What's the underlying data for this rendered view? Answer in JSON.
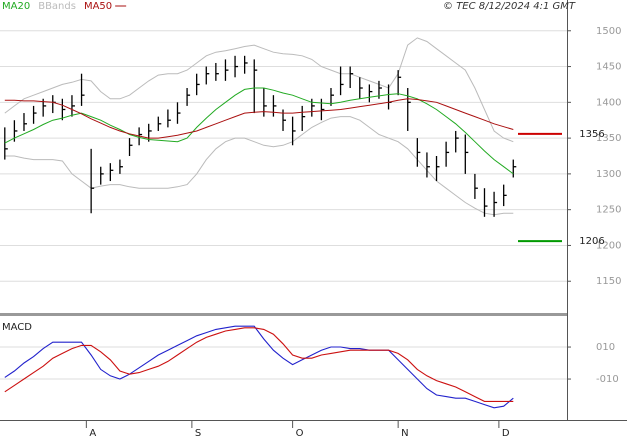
{
  "chart_data": [
    {
      "type": "ohlc",
      "credit": "© TEC 8/12/2024 4:1 GMT",
      "x": [
        0,
        1,
        2,
        3,
        4,
        5,
        6,
        7,
        8,
        9,
        10,
        11,
        12,
        13,
        14,
        15,
        16,
        17,
        18,
        19,
        20,
        21,
        22,
        23,
        24,
        25,
        26,
        27,
        28,
        29,
        30,
        31,
        32,
        33,
        34,
        35,
        36,
        37,
        38,
        39,
        40,
        41,
        42,
        43,
        44,
        45,
        46,
        47,
        48,
        49,
        50,
        51,
        52,
        53
      ],
      "high": [
        1365,
        1375,
        1385,
        1395,
        1405,
        1410,
        1405,
        1410,
        1440,
        1335,
        1310,
        1315,
        1320,
        1350,
        1365,
        1370,
        1380,
        1390,
        1400,
        1420,
        1440,
        1450,
        1455,
        1460,
        1465,
        1465,
        1460,
        1420,
        1410,
        1390,
        1380,
        1395,
        1405,
        1405,
        1420,
        1450,
        1450,
        1435,
        1425,
        1430,
        1425,
        1445,
        1420,
        1350,
        1330,
        1325,
        1345,
        1360,
        1355,
        1300,
        1280,
        1275,
        1285,
        1320
      ],
      "low": [
        1320,
        1345,
        1360,
        1370,
        1380,
        1385,
        1375,
        1380,
        1395,
        1245,
        1285,
        1290,
        1300,
        1325,
        1340,
        1345,
        1360,
        1365,
        1370,
        1395,
        1410,
        1425,
        1430,
        1430,
        1435,
        1440,
        1385,
        1380,
        1380,
        1360,
        1340,
        1360,
        1380,
        1375,
        1395,
        1410,
        1420,
        1405,
        1400,
        1405,
        1390,
        1410,
        1360,
        1310,
        1295,
        1290,
        1310,
        1330,
        1300,
        1265,
        1240,
        1240,
        1255,
        1295
      ],
      "close": [
        1335,
        1360,
        1370,
        1385,
        1395,
        1400,
        1390,
        1395,
        1410,
        1280,
        1300,
        1305,
        1310,
        1340,
        1355,
        1360,
        1370,
        1375,
        1385,
        1410,
        1425,
        1440,
        1440,
        1445,
        1450,
        1455,
        1445,
        1395,
        1395,
        1375,
        1360,
        1380,
        1395,
        1390,
        1410,
        1425,
        1440,
        1420,
        1415,
        1420,
        1400,
        1435,
        1400,
        1330,
        1310,
        1310,
        1330,
        1350,
        1330,
        1280,
        1255,
        1260,
        1270,
        1310
      ],
      "bar_color": "#000000",
      "series": [
        {
          "name": "MA20",
          "color": "#22aa22",
          "values": [
            1343,
            1350,
            1356,
            1362,
            1369,
            1375,
            1378,
            1382,
            1385,
            1380,
            1375,
            1368,
            1362,
            1355,
            1351,
            1348,
            1347,
            1346,
            1345,
            1350,
            1365,
            1378,
            1390,
            1400,
            1410,
            1418,
            1420,
            1420,
            1417,
            1413,
            1410,
            1405,
            1400,
            1399,
            1398,
            1400,
            1403,
            1405,
            1407,
            1409,
            1411,
            1412,
            1409,
            1405,
            1398,
            1390,
            1380,
            1370,
            1358,
            1345,
            1332,
            1320,
            1310,
            1300
          ]
        },
        {
          "name": "MA50",
          "color": "#aa1111",
          "values": [
            1403,
            1403,
            1402,
            1402,
            1401,
            1400,
            1396,
            1390,
            1384,
            1377,
            1371,
            1365,
            1360,
            1356,
            1353,
            1350,
            1350,
            1352,
            1354,
            1357,
            1360,
            1365,
            1370,
            1375,
            1380,
            1385,
            1386,
            1387,
            1386,
            1385,
            1385,
            1386,
            1387,
            1388,
            1389,
            1390,
            1392,
            1394,
            1396,
            1398,
            1400,
            1403,
            1405,
            1404,
            1402,
            1400,
            1395,
            1390,
            1385,
            1380,
            1375,
            1370,
            1366,
            1362
          ]
        }
      ],
      "bbands": {
        "name": "BBands",
        "color": "#bbbbbb",
        "upper": [
          1385,
          1395,
          1405,
          1410,
          1415,
          1420,
          1425,
          1428,
          1432,
          1430,
          1415,
          1405,
          1405,
          1410,
          1420,
          1430,
          1438,
          1440,
          1440,
          1445,
          1455,
          1465,
          1470,
          1472,
          1475,
          1478,
          1480,
          1475,
          1470,
          1468,
          1467,
          1465,
          1460,
          1450,
          1445,
          1440,
          1440,
          1435,
          1430,
          1425,
          1420,
          1440,
          1480,
          1490,
          1485,
          1475,
          1465,
          1455,
          1445,
          1420,
          1390,
          1360,
          1350,
          1345
        ],
        "lower": [
          1325,
          1325,
          1322,
          1320,
          1320,
          1320,
          1318,
          1300,
          1290,
          1280,
          1283,
          1285,
          1285,
          1282,
          1280,
          1280,
          1280,
          1280,
          1282,
          1285,
          1300,
          1320,
          1335,
          1345,
          1350,
          1350,
          1345,
          1340,
          1338,
          1340,
          1345,
          1355,
          1365,
          1372,
          1378,
          1380,
          1380,
          1375,
          1365,
          1355,
          1350,
          1345,
          1335,
          1320,
          1305,
          1290,
          1280,
          1270,
          1260,
          1252,
          1245,
          1243,
          1245,
          1245
        ]
      },
      "levels": [
        {
          "value": 1356,
          "color": "#cc0000"
        },
        {
          "value": 1206,
          "color": "#009900"
        }
      ],
      "xlim": [
        -0.5,
        58.6
      ],
      "ylim": [
        1107,
        1543
      ],
      "yticks": [
        1150,
        1200,
        1250,
        1300,
        1350,
        1400,
        1450,
        1500
      ],
      "grid": true
    },
    {
      "type": "line",
      "title": "MACD",
      "x": [
        0,
        1,
        2,
        3,
        4,
        5,
        6,
        7,
        8,
        9,
        10,
        11,
        12,
        13,
        14,
        15,
        16,
        17,
        18,
        19,
        20,
        21,
        22,
        23,
        24,
        25,
        26,
        27,
        28,
        29,
        30,
        31,
        32,
        33,
        34,
        35,
        36,
        37,
        38,
        39,
        40,
        41,
        42,
        43,
        44,
        45,
        46,
        47,
        48,
        49,
        50,
        51,
        52,
        53
      ],
      "series": [
        {
          "color": "#2222cc",
          "values": [
            -9,
            -5,
            0,
            4,
            9,
            13,
            13,
            13,
            13,
            5,
            -4,
            -8,
            -10,
            -7,
            -3,
            1,
            5,
            8,
            11,
            14,
            17,
            19,
            21,
            22,
            23,
            23,
            23,
            15,
            8,
            3,
            -1,
            2,
            5,
            8,
            10,
            10,
            9,
            9,
            8,
            8,
            8,
            2,
            -4,
            -10,
            -16,
            -20,
            -21,
            -22,
            -22,
            -24,
            -26,
            -28,
            -27,
            -22
          ]
        },
        {
          "color": "#cc1111",
          "values": [
            -18,
            -14,
            -10,
            -6,
            -2,
            3,
            6,
            9,
            11,
            11,
            7,
            2,
            -5,
            -7,
            -6,
            -4,
            -2,
            1,
            5,
            9,
            13,
            16,
            18,
            20,
            21,
            22,
            22,
            21,
            18,
            12,
            5,
            3,
            3,
            5,
            6,
            7,
            8,
            8,
            8,
            8,
            8,
            6,
            2,
            -4,
            -8,
            -11,
            -13,
            -15,
            -18,
            -21,
            -24,
            -24,
            -24,
            -24
          ]
        }
      ],
      "xlim": [
        -0.5,
        58.6
      ],
      "xticks": [
        {
          "value": 8.5,
          "label": "A"
        },
        {
          "value": 19.5,
          "label": "S"
        },
        {
          "value": 30,
          "label": "O"
        },
        {
          "value": 41,
          "label": "N"
        },
        {
          "value": 51.5,
          "label": "D"
        }
      ],
      "ylim": [
        -35.6,
        29.4
      ],
      "yticks": [
        {
          "value": 10,
          "label": "010"
        },
        {
          "value": -10,
          "label": "-010"
        }
      ],
      "grid": true
    }
  ]
}
